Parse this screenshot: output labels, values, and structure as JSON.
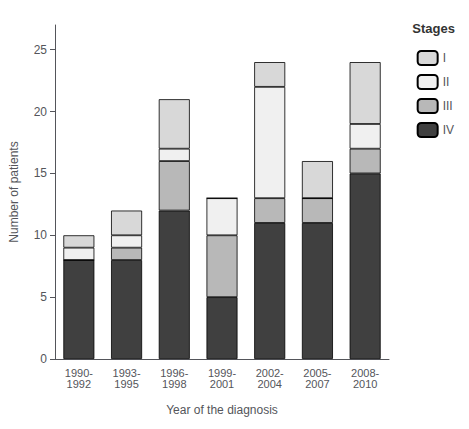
{
  "chart_data": {
    "type": "bar",
    "categories": [
      "1990-\n1992",
      "1993-\n1995",
      "1996-\n1998",
      "1999-\n2001",
      "2002-\n2004",
      "2005-\n2007",
      "2008-\n2010"
    ],
    "series": [
      {
        "name": "IV",
        "color": "#404040",
        "values": [
          8,
          8,
          12,
          5,
          11,
          11,
          15
        ]
      },
      {
        "name": "III",
        "color": "#b8b8b8",
        "values": [
          0,
          1,
          4,
          5,
          2,
          2,
          2
        ]
      },
      {
        "name": "II",
        "color": "#f0f0f0",
        "values": [
          1,
          1,
          1,
          3,
          9,
          0,
          2
        ]
      },
      {
        "name": "I",
        "color": "#d8d8d8",
        "values": [
          1,
          2,
          4,
          0,
          2,
          3,
          5
        ]
      }
    ],
    "stacked": true,
    "xlabel": "Year of the diagnosis",
    "ylabel": "Number of patients",
    "legend_title": "Stages",
    "legend": "upper right",
    "ylim": [
      0,
      27
    ],
    "yticks": [
      0,
      5,
      10,
      15,
      20,
      25
    ],
    "grid": false
  }
}
